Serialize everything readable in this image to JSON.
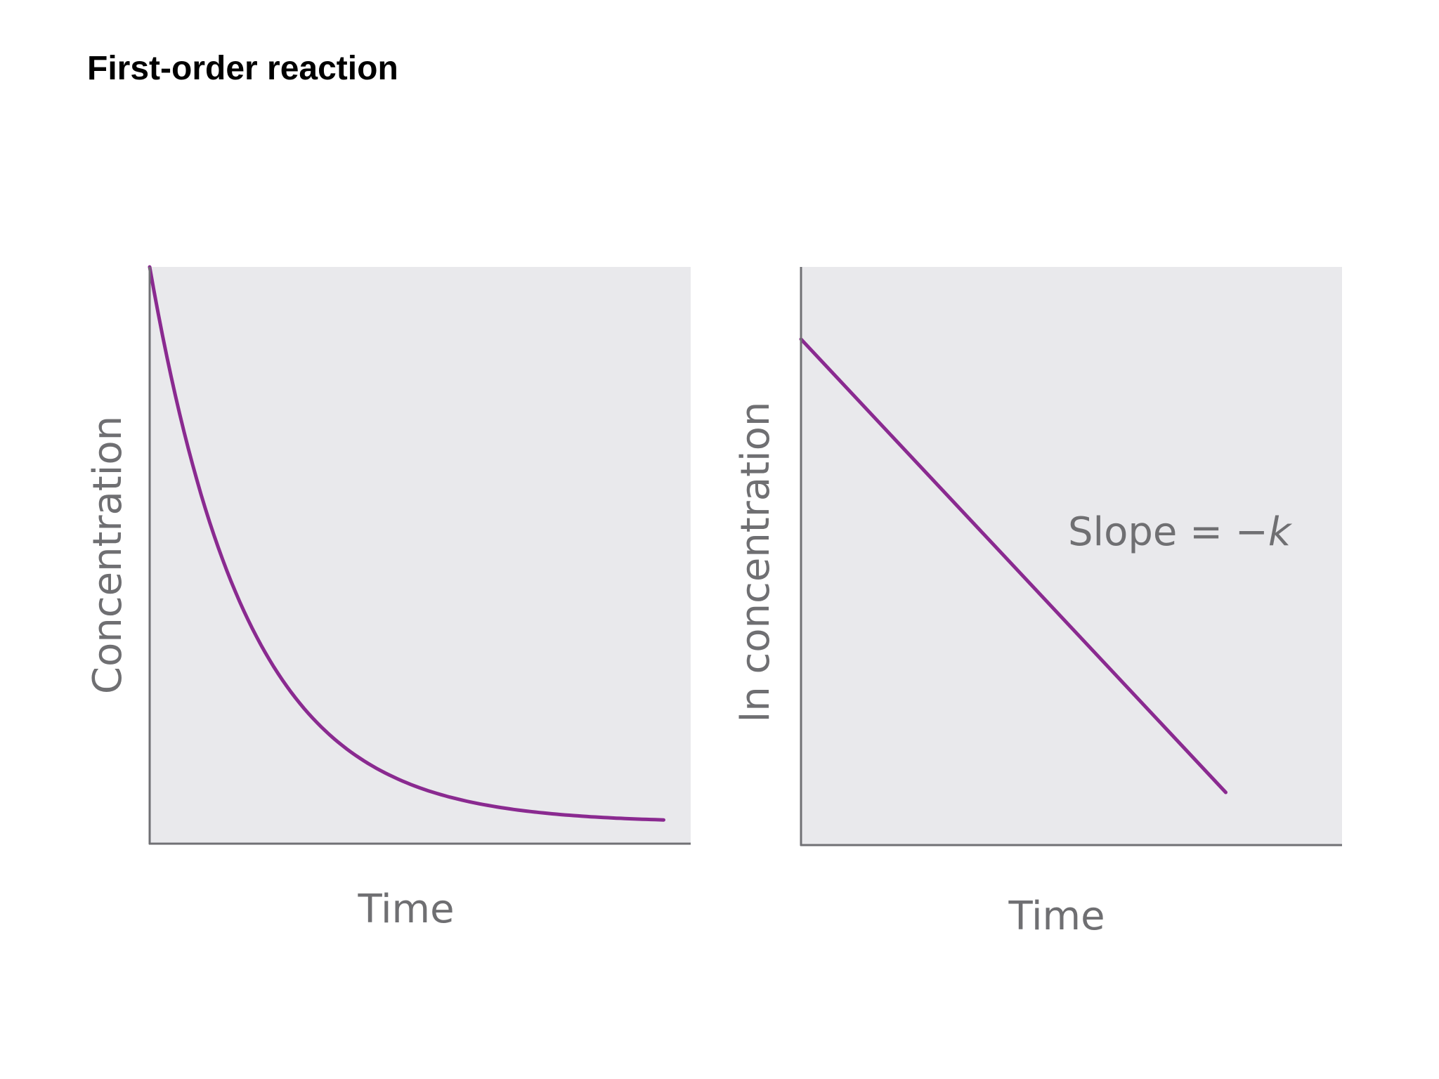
{
  "page": {
    "title": "First-order reaction"
  },
  "colors": {
    "plot_background": "#e9e9ec",
    "axis": "#707074",
    "curve": "#8a2a90",
    "label": "#6f6f72"
  },
  "chart_data": [
    {
      "type": "line",
      "title": "",
      "xlabel": "Time",
      "ylabel": "Concentration",
      "x_ticks": [],
      "y_ticks": [],
      "grid": false,
      "legend": "none",
      "series": [
        {
          "curve": "exponential-decay",
          "x": [
            0,
            0.05,
            0.1,
            0.15,
            0.2,
            0.3,
            0.4,
            0.5,
            0.6,
            0.7,
            0.8,
            0.9,
            0.95
          ],
          "y": [
            1.0,
            0.82,
            0.68,
            0.57,
            0.48,
            0.35,
            0.26,
            0.19,
            0.13,
            0.09,
            0.06,
            0.045,
            0.04
          ]
        }
      ],
      "xlim": [
        0,
        1
      ],
      "ylim": [
        0,
        1
      ]
    },
    {
      "type": "line",
      "title": "",
      "xlabel": "Time",
      "ylabel": "ln concentration",
      "x_ticks": [],
      "y_ticks": [],
      "grid": false,
      "legend": "none",
      "annotations": [
        {
          "text_main": "Slope = −",
          "text_var": "k"
        }
      ],
      "series": [
        {
          "curve": "straight-line",
          "x": [
            0,
            0.785
          ],
          "y": [
            0.875,
            0.09
          ]
        }
      ],
      "xlim": [
        0,
        1
      ],
      "ylim": [
        0,
        1
      ]
    }
  ]
}
